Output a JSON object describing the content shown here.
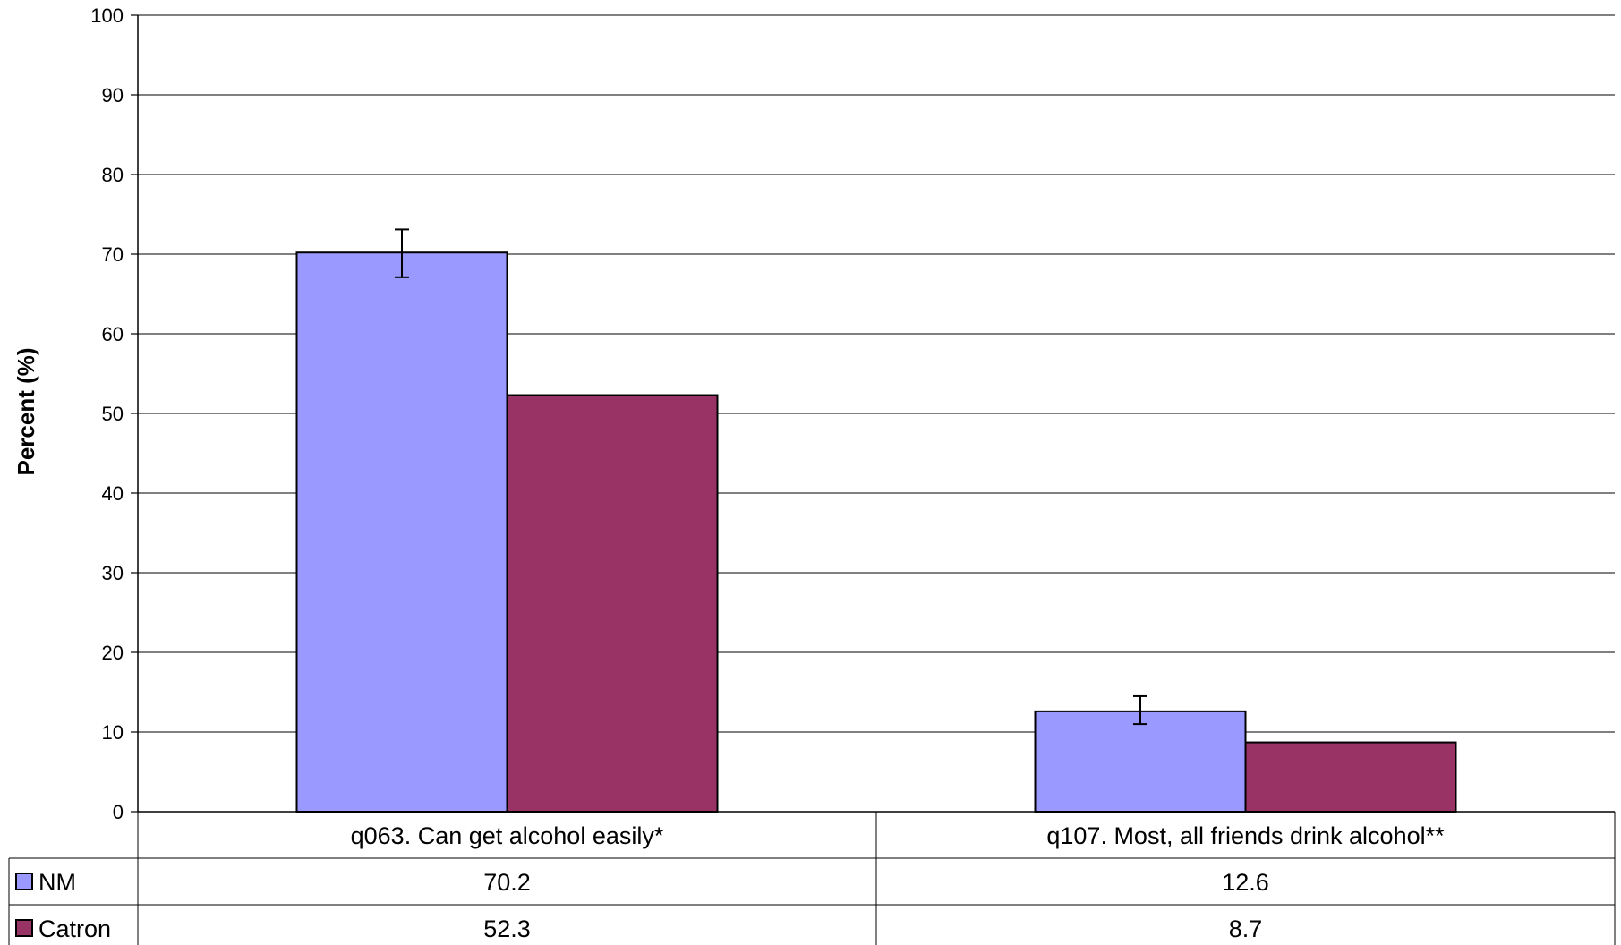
{
  "chart_data": {
    "type": "bar",
    "title": "",
    "xlabel": "",
    "ylabel": "Percent (%)",
    "ylim": [
      0,
      100
    ],
    "yticks": [
      0,
      10,
      20,
      30,
      40,
      50,
      60,
      70,
      80,
      90,
      100
    ],
    "grid": true,
    "legend": "data-table",
    "categories": [
      "q063. Can get alcohol easily*",
      "q107. Most, all friends drink alcohol**"
    ],
    "series": [
      {
        "name": "NM",
        "color": "#9999FF",
        "values": [
          70.2,
          12.6
        ],
        "labels": [
          "70.2",
          "12.6"
        ],
        "error_bars": [
          [
            67.1,
            73.1
          ],
          [
            11.0,
            14.5
          ]
        ]
      },
      {
        "name": "Catron",
        "color": "#993366",
        "values": [
          52.3,
          8.7
        ],
        "labels": [
          "52.3",
          "8.7"
        ]
      }
    ]
  }
}
